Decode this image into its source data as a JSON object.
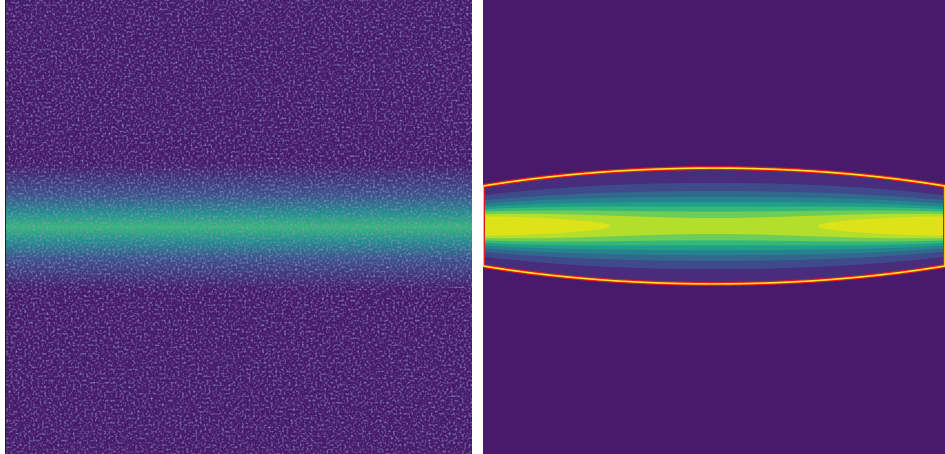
{
  "chart_data": [
    {
      "type": "heatmap",
      "colors": [
        "#46196b",
        "#3b528b",
        "#21908d",
        "#35b779"
      ]
    },
    {
      "type": "contour",
      "colors": [
        "#481a6c",
        "#472d7b",
        "#3e4a89",
        "#31688e",
        "#26828e",
        "#1f9e89",
        "#35b779",
        "#6dcd59",
        "#b4de2c",
        "#dde318"
      ],
      "line_colors": [
        "#fde725",
        "#e31a1c"
      ]
    }
  ]
}
